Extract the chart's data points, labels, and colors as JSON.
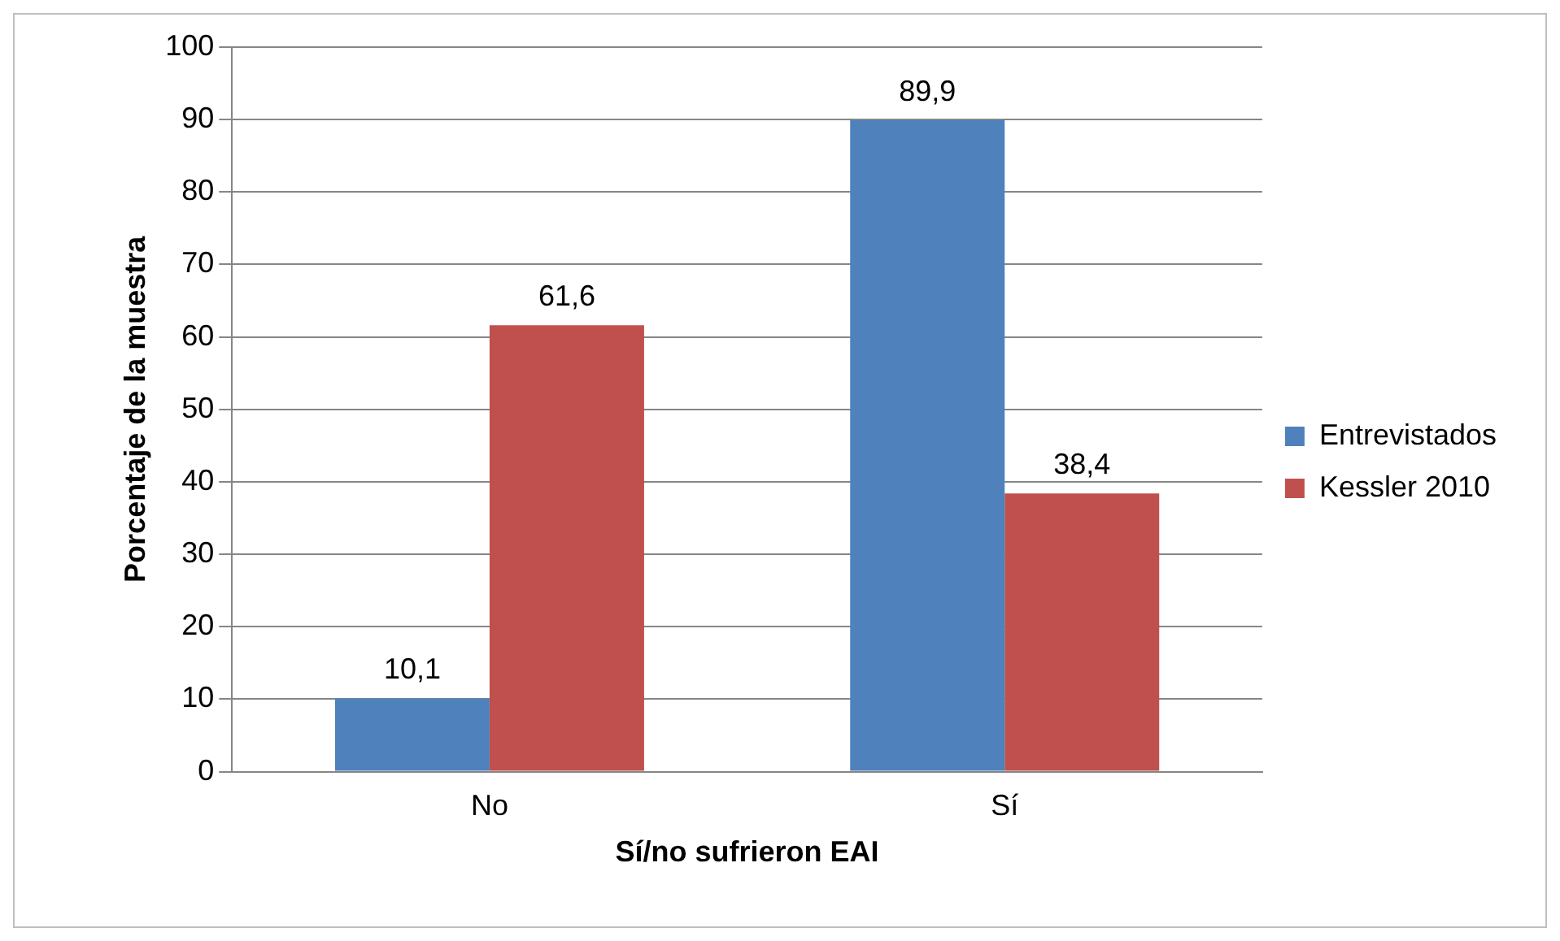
{
  "chart_data": {
    "type": "bar",
    "xlabel": "Sí/no sufrieron EAI",
    "ylabel": "Porcentaje de la muestra",
    "categories": [
      "No",
      "Sí"
    ],
    "series": [
      {
        "name": "Entrevistados",
        "color": "#4f81bd",
        "values": [
          10.1,
          89.9
        ],
        "value_labels": [
          "10,1",
          "89,9"
        ]
      },
      {
        "name": "Kessler 2010",
        "color": "#c0504d",
        "values": [
          61.6,
          38.4
        ],
        "value_labels": [
          "61,6",
          "38,4"
        ]
      }
    ],
    "ylim": [
      0,
      100
    ],
    "yticks": [
      0,
      10,
      20,
      30,
      40,
      50,
      60,
      70,
      80,
      90,
      100
    ],
    "grid": "y",
    "legend": "right"
  }
}
